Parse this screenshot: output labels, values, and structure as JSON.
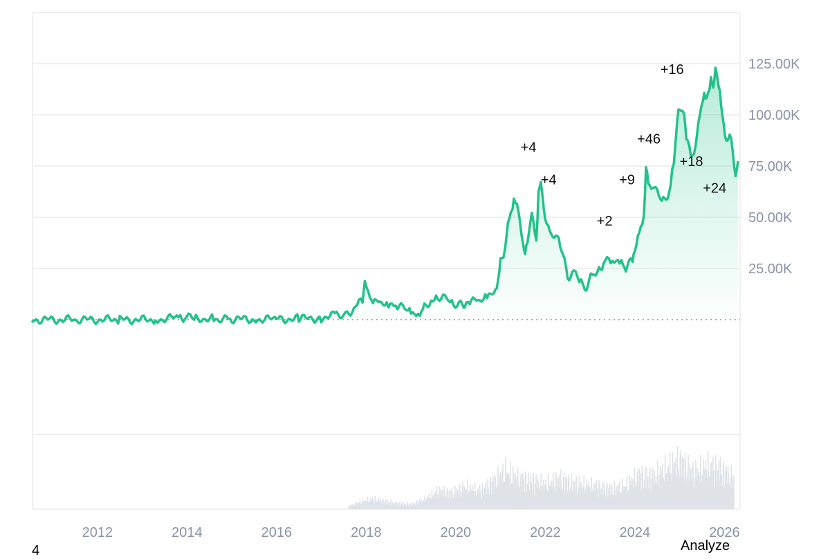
{
  "footer": {
    "left_label": "4",
    "analyze_label": "Analyze"
  },
  "colors": {
    "line": "#22c28a",
    "grid": "#ececec",
    "axis_text": "#8a93a6",
    "volume": "#e6e8ec"
  },
  "chart_data": {
    "type": "area",
    "title": "",
    "xlabel": "",
    "ylabel": "",
    "xlim": [
      2010.55,
      2026.35
    ],
    "ylim": [
      -56000,
      150000
    ],
    "y_ticks": [
      25000,
      50000,
      75000,
      100000,
      125000
    ],
    "y_tick_labels": [
      "25.00K",
      "50.00K",
      "75.00K",
      "100.00K",
      "125.00K"
    ],
    "x_ticks": [
      2012,
      2014,
      2016,
      2018,
      2020,
      2022,
      2024,
      2026
    ],
    "x_tick_labels": [
      "2012",
      "2014",
      "2016",
      "2018",
      "2020",
      "2022",
      "2024",
      "2026"
    ],
    "grid": true,
    "baseline": 0,
    "series": [
      {
        "type": "area",
        "x": [
          2010.55,
          2011.5,
          2012.5,
          2013.3,
          2013.85,
          2013.95,
          2014.2,
          2014.6,
          2015,
          2015.5,
          2016,
          2016.5,
          2017,
          2017.3,
          2017.5,
          2017.8,
          2017.92,
          2017.97,
          2018.05,
          2018.15,
          2018.3,
          2018.5,
          2018.7,
          2018.9,
          2019,
          2019.2,
          2019.3,
          2019.45,
          2019.6,
          2019.8,
          2019.95,
          2020.15,
          2020.2,
          2020.35,
          2020.5,
          2020.7,
          2020.85,
          2020.95,
          2021.0,
          2021.1,
          2021.2,
          2021.3,
          2021.4,
          2021.5,
          2021.55,
          2021.6,
          2021.7,
          2021.8,
          2021.85,
          2021.9,
          2022.0,
          2022.1,
          2022.2,
          2022.3,
          2022.4,
          2022.5,
          2022.6,
          2022.8,
          2022.85,
          2022.95,
          2023.05,
          2023.2,
          2023.3,
          2023.5,
          2023.7,
          2023.8,
          2023.95,
          2024.0,
          2024.1,
          2024.2,
          2024.25,
          2024.3,
          2024.4,
          2024.5,
          2024.6,
          2024.7,
          2024.8,
          2024.87,
          2024.95,
          2025.0,
          2025.1,
          2025.15,
          2025.25,
          2025.35,
          2025.45,
          2025.55,
          2025.6,
          2025.7,
          2025.75,
          2025.8,
          2025.9,
          2025.95,
          2026.05,
          2026.15,
          2026.25,
          2026.3
        ],
        "y": [
          0,
          0,
          0,
          0,
          1200,
          1000,
          600,
          500,
          300,
          250,
          300,
          400,
          900,
          2000,
          2800,
          6000,
          11000,
          19000,
          14000,
          8000,
          9000,
          7000,
          6500,
          5000,
          3500,
          4000,
          5500,
          8000,
          11000,
          9500,
          8000,
          7000,
          5000,
          9000,
          9500,
          11000,
          13000,
          19000,
          29000,
          35000,
          50000,
          58000,
          55000,
          35000,
          32000,
          40000,
          50000,
          40000,
          60000,
          67000,
          48000,
          45000,
          38000,
          42000,
          30000,
          21000,
          23000,
          20000,
          17000,
          16500,
          22000,
          25000,
          28000,
          28000,
          27000,
          26000,
          30000,
          35000,
          42000,
          50000,
          72000,
          68000,
          62000,
          66000,
          56000,
          60000,
          65000,
          78000,
          97000,
          103000,
          100000,
          88000,
          80000,
          84000,
          100000,
          110000,
          108000,
          118000,
          112000,
          124000,
          110000,
          100000,
          87000,
          90000,
          68000,
          77000
        ]
      },
      {
        "type": "volume",
        "x": [
          2017.6,
          2017.9,
          2018.2,
          2018.6,
          2019.0,
          2019.3,
          2019.6,
          2019.9,
          2020.2,
          2020.5,
          2020.8,
          2021.1,
          2021.4,
          2021.7,
          2022.0,
          2022.3,
          2022.6,
          2022.9,
          2023.2,
          2023.5,
          2023.8,
          2024.1,
          2024.4,
          2024.7,
          2025.0,
          2025.3,
          2025.6,
          2025.9,
          2026.2
        ],
        "y": [
          3,
          8,
          10,
          6,
          5,
          10,
          18,
          16,
          22,
          18,
          26,
          38,
          30,
          28,
          24,
          30,
          26,
          24,
          22,
          20,
          24,
          34,
          32,
          40,
          48,
          36,
          42,
          40,
          30
        ]
      }
    ],
    "annotations": [
      {
        "text": "+4",
        "x": 2021.45,
        "y": 82000
      },
      {
        "text": "+4",
        "x": 2021.9,
        "y": 66000
      },
      {
        "text": "+2",
        "x": 2023.15,
        "y": 46000
      },
      {
        "text": "+9",
        "x": 2023.65,
        "y": 66000
      },
      {
        "text": "+46",
        "x": 2024.05,
        "y": 86000
      },
      {
        "text": "+16",
        "x": 2024.57,
        "y": 120000
      },
      {
        "text": "+18",
        "x": 2025.0,
        "y": 75000
      },
      {
        "text": "+24",
        "x": 2025.52,
        "y": 62000
      }
    ]
  }
}
